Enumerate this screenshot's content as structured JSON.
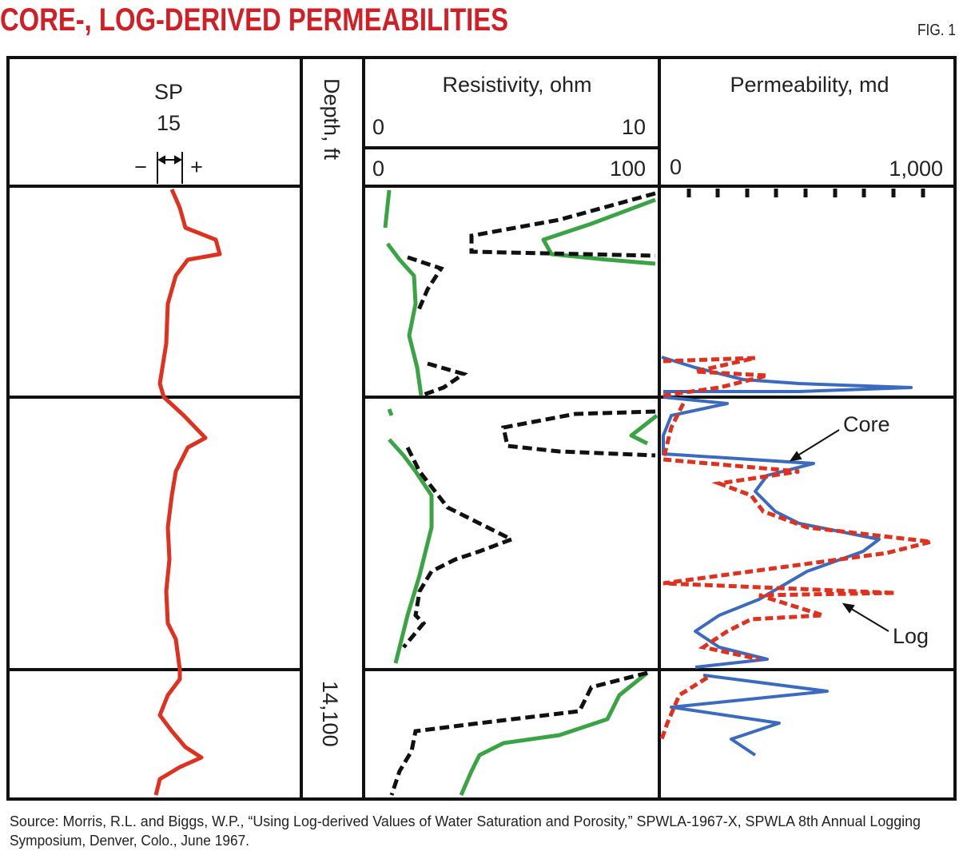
{
  "header": {
    "title": "CORE-, LOG-DERIVED PERMEABILITIES",
    "figure": "FIG. 1"
  },
  "tracks": {
    "sp": {
      "label": "SP",
      "scale": "15",
      "minus": "−",
      "plus": "+"
    },
    "depth": {
      "label": "Depth, ft",
      "marker": "14,100"
    },
    "resistivity": {
      "label": "Resistivity, ohm",
      "scales": [
        {
          "min": "0",
          "max": "10"
        },
        {
          "min": "0",
          "max": "100"
        }
      ]
    },
    "permeability": {
      "label": "Permeability, md",
      "min": "0",
      "max": "1,000",
      "annotations": [
        "Core",
        "Log"
      ]
    }
  },
  "source": [
    "Source: Morris, R.L. and Biggs, W.P., “Using Log-derived Values of Water Saturation and Porosity,” SPWLA-1967-X, SPWLA 8th Annual Logging",
    "Symposium, Denver, Colo., June 1967."
  ]
}
